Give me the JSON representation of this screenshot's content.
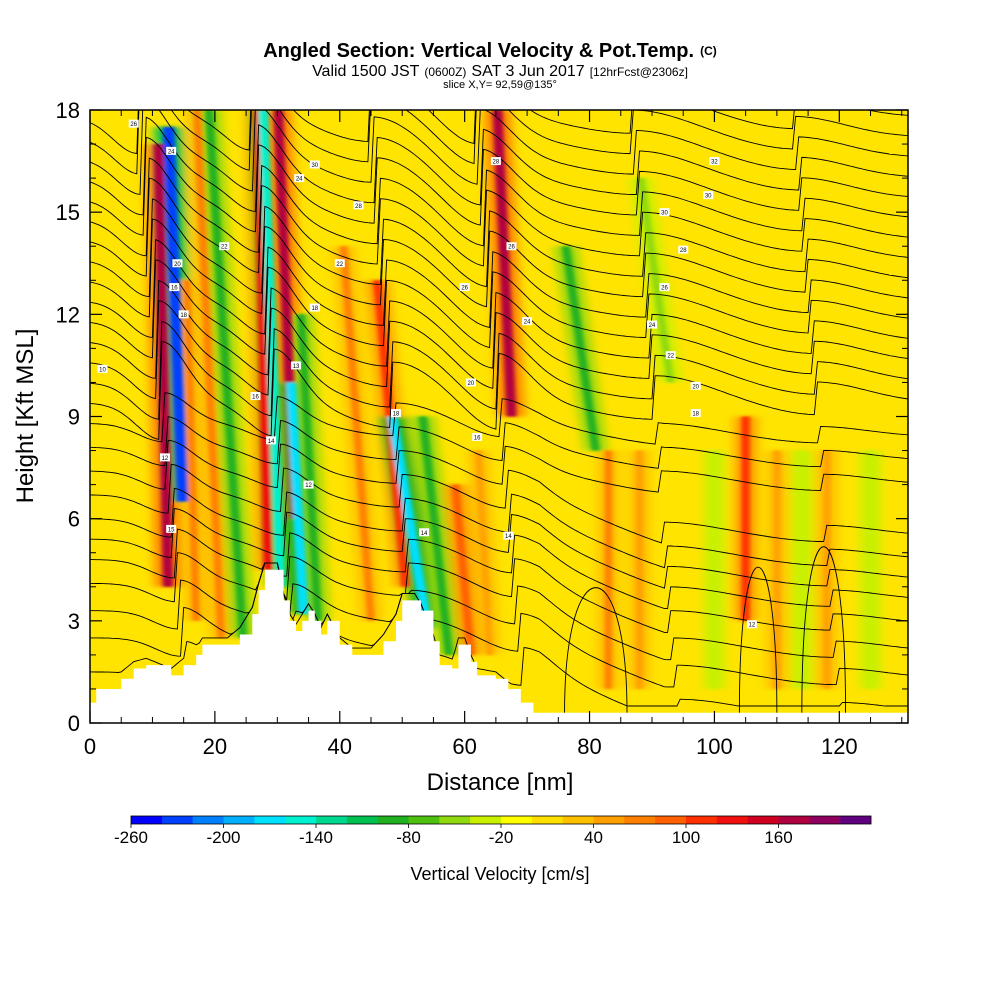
{
  "chart_data": {
    "type": "heatmap",
    "title": "Angled Section: Vertical Velocity & Pot.Temp.",
    "title_mark": "(C)",
    "subtitle": {
      "part1": "Valid 1500 JST",
      "part2": "(0600Z)",
      "part3": "SAT 3 Jun 2017",
      "part4": "[12hrFcst@2306z]"
    },
    "slice_label": "slice X,Y= 92,59@135°",
    "xlabel": "Distance [nm]",
    "ylabel": "Height [Kft MSL]",
    "xlim": [
      0,
      131
    ],
    "ylim": [
      0,
      18
    ],
    "x_ticks": [
      "0",
      "20",
      "40",
      "60",
      "80",
      "100",
      "120"
    ],
    "y_ticks": [
      "0",
      "3",
      "6",
      "9",
      "12",
      "15",
      "18"
    ],
    "colorbar": {
      "label": "Vertical Velocity [cm/s]",
      "tick_labels": [
        "-260",
        "-200",
        "-140",
        "-80",
        "-20",
        "40",
        "100",
        "160"
      ],
      "colors": [
        "#0000ff",
        "#0040ff",
        "#0080ff",
        "#00b0ff",
        "#00e0ff",
        "#00f0d0",
        "#00d890",
        "#00c050",
        "#20b020",
        "#50c010",
        "#90d810",
        "#c8f000",
        "#ffff00",
        "#ffe000",
        "#ffc000",
        "#ffa000",
        "#ff8000",
        "#ff6000",
        "#ff3000",
        "#f01010",
        "#d00020",
        "#b00040",
        "#900060",
        "#600080"
      ]
    },
    "background_color": "#ffe400",
    "vertical_velocity_features": [
      {
        "x": 12.5,
        "z_bottom": 4.0,
        "z_top": 17.0,
        "tilt_nm_per_kft": -0.12,
        "value": 170
      },
      {
        "x": 14.8,
        "z_bottom": 6.5,
        "z_top": 17.5,
        "tilt_nm_per_kft": -0.2,
        "value": -230
      },
      {
        "x": 17.0,
        "z_bottom": 3.0,
        "z_top": 13.0,
        "tilt_nm_per_kft": -0.15,
        "value": 60
      },
      {
        "x": 21.0,
        "z_bottom": 2.5,
        "z_top": 18.0,
        "tilt_nm_per_kft": -0.25,
        "value": 70
      },
      {
        "x": 24.5,
        "z_bottom": 2.5,
        "z_top": 18.0,
        "tilt_nm_per_kft": -0.35,
        "value": -100
      },
      {
        "x": 28.5,
        "z_bottom": 4.5,
        "z_top": 18.0,
        "tilt_nm_per_kft": -0.12,
        "value": 120
      },
      {
        "x": 30.5,
        "z_bottom": 4.0,
        "z_top": 18.0,
        "tilt_nm_per_kft": -0.2,
        "value": -160
      },
      {
        "x": 32.8,
        "z_bottom": 6.0,
        "z_top": 18.0,
        "tilt_nm_per_kft": -0.22,
        "value": 160
      },
      {
        "x": 34.2,
        "z_bottom": 3.2,
        "z_top": 10.0,
        "tilt_nm_per_kft": -0.3,
        "value": -170
      },
      {
        "x": 36.5,
        "z_bottom": 3.0,
        "z_top": 12.0,
        "tilt_nm_per_kft": -0.3,
        "value": -90
      },
      {
        "x": 45.0,
        "z_bottom": 3.0,
        "z_top": 14.0,
        "tilt_nm_per_kft": -0.4,
        "value": 70
      },
      {
        "x": 50.5,
        "z_bottom": 4.0,
        "z_top": 13.0,
        "tilt_nm_per_kft": -0.5,
        "value": 100
      },
      {
        "x": 54.0,
        "z_bottom": 2.8,
        "z_top": 9.0,
        "tilt_nm_per_kft": -0.9,
        "value": -170
      },
      {
        "x": 57.5,
        "z_bottom": 2.0,
        "z_top": 9.0,
        "tilt_nm_per_kft": -0.6,
        "value": -100
      },
      {
        "x": 61.0,
        "z_bottom": 2.0,
        "z_top": 7.0,
        "tilt_nm_per_kft": -0.5,
        "value": 90
      },
      {
        "x": 67.5,
        "z_bottom": 9.0,
        "z_top": 18.0,
        "tilt_nm_per_kft": -0.25,
        "value": 170
      },
      {
        "x": 64.0,
        "z_bottom": 2.0,
        "z_top": 8.0,
        "tilt_nm_per_kft": -0.3,
        "value": 40
      },
      {
        "x": 81.0,
        "z_bottom": 8.0,
        "z_top": 14.0,
        "tilt_nm_per_kft": -0.8,
        "value": -90
      },
      {
        "x": 83.0,
        "z_bottom": 1.0,
        "z_top": 8.0,
        "tilt_nm_per_kft": 0.0,
        "value": 60
      },
      {
        "x": 88.0,
        "z_bottom": 1.0,
        "z_top": 8.0,
        "tilt_nm_per_kft": 0.0,
        "value": 40
      },
      {
        "x": 93.0,
        "z_bottom": 10.0,
        "z_top": 16.0,
        "tilt_nm_per_kft": -0.8,
        "value": -60
      },
      {
        "x": 100.0,
        "z_bottom": 1.0,
        "z_top": 8.0,
        "tilt_nm_per_kft": 0.0,
        "value": -30
      },
      {
        "x": 105.0,
        "z_bottom": 3.0,
        "z_top": 9.0,
        "tilt_nm_per_kft": 0.0,
        "value": 100
      },
      {
        "x": 110.0,
        "z_bottom": 1.0,
        "z_top": 8.0,
        "tilt_nm_per_kft": 0.0,
        "value": 40
      },
      {
        "x": 114.0,
        "z_bottom": 1.0,
        "z_top": 8.0,
        "tilt_nm_per_kft": 0.0,
        "value": -30
      },
      {
        "x": 118.0,
        "z_bottom": 1.0,
        "z_top": 8.0,
        "tilt_nm_per_kft": 0.0,
        "value": 50
      },
      {
        "x": 125.0,
        "z_bottom": 1.0,
        "z_top": 8.0,
        "tilt_nm_per_kft": 0.0,
        "value": -30
      }
    ],
    "terrain_profile": [
      {
        "x": 0,
        "z": 0.6
      },
      {
        "x": 1,
        "z": 1.0
      },
      {
        "x": 5,
        "z": 1.3
      },
      {
        "x": 7,
        "z": 1.6
      },
      {
        "x": 9,
        "z": 1.7
      },
      {
        "x": 13,
        "z": 1.4
      },
      {
        "x": 15,
        "z": 1.7
      },
      {
        "x": 17,
        "z": 2.0
      },
      {
        "x": 18,
        "z": 2.3
      },
      {
        "x": 22,
        "z": 2.3
      },
      {
        "x": 24,
        "z": 2.6
      },
      {
        "x": 26,
        "z": 3.2
      },
      {
        "x": 27,
        "z": 3.9
      },
      {
        "x": 28,
        "z": 4.5
      },
      {
        "x": 30,
        "z": 4.5
      },
      {
        "x": 31,
        "z": 3.6
      },
      {
        "x": 32,
        "z": 3.0
      },
      {
        "x": 33,
        "z": 2.7
      },
      {
        "x": 34,
        "z": 3.0
      },
      {
        "x": 35,
        "z": 3.3
      },
      {
        "x": 36,
        "z": 3.0
      },
      {
        "x": 37,
        "z": 2.6
      },
      {
        "x": 38,
        "z": 3.0
      },
      {
        "x": 40,
        "z": 2.3
      },
      {
        "x": 42,
        "z": 2.0
      },
      {
        "x": 45,
        "z": 2.0
      },
      {
        "x": 47,
        "z": 2.4
      },
      {
        "x": 49,
        "z": 3.0
      },
      {
        "x": 50,
        "z": 3.6
      },
      {
        "x": 52,
        "z": 3.6
      },
      {
        "x": 53,
        "z": 3.3
      },
      {
        "x": 55,
        "z": 2.4
      },
      {
        "x": 56,
        "z": 1.7
      },
      {
        "x": 58,
        "z": 1.6
      },
      {
        "x": 59,
        "z": 2.3
      },
      {
        "x": 60,
        "z": 2.3
      },
      {
        "x": 61,
        "z": 1.8
      },
      {
        "x": 62,
        "z": 1.4
      },
      {
        "x": 65,
        "z": 1.3
      },
      {
        "x": 67,
        "z": 1.0
      },
      {
        "x": 69,
        "z": 0.6
      },
      {
        "x": 71,
        "z": 0.3
      },
      {
        "x": 131,
        "z": 0.3
      }
    ],
    "isentrope_heights_kft": [
      1.5,
      2.5,
      3.3,
      4.1,
      4.8,
      5.4,
      6.0,
      6.7,
      7.4,
      8.1,
      8.8,
      9.4,
      10.0,
      10.6,
      11.2,
      11.8,
      12.4,
      13.0,
      13.6,
      14.2,
      14.8,
      15.4,
      16.0,
      16.6,
      17.2,
      17.8
    ],
    "contour_labels": [
      {
        "text": "26",
        "x": 7.0,
        "z": 17.6
      },
      {
        "text": "24",
        "x": 13.0,
        "z": 16.8
      },
      {
        "text": "20",
        "x": 14.0,
        "z": 13.5
      },
      {
        "text": "16",
        "x": 13.5,
        "z": 12.8
      },
      {
        "text": "10",
        "x": 2.0,
        "z": 10.4
      },
      {
        "text": "12",
        "x": 12.0,
        "z": 7.8
      },
      {
        "text": "15",
        "x": 13.0,
        "z": 5.7
      },
      {
        "text": "18",
        "x": 15.0,
        "z": 12.0
      },
      {
        "text": "22",
        "x": 21.5,
        "z": 14.0
      },
      {
        "text": "30",
        "x": 36.0,
        "z": 16.4
      },
      {
        "text": "24",
        "x": 33.5,
        "z": 16.0
      },
      {
        "text": "22",
        "x": 40.0,
        "z": 13.5
      },
      {
        "text": "18",
        "x": 36.0,
        "z": 12.2
      },
      {
        "text": "13",
        "x": 33.0,
        "z": 10.5
      },
      {
        "text": "16",
        "x": 26.5,
        "z": 9.6
      },
      {
        "text": "14",
        "x": 29.0,
        "z": 8.3
      },
      {
        "text": "12",
        "x": 35.0,
        "z": 7.0
      },
      {
        "text": "28",
        "x": 43.0,
        "z": 15.2
      },
      {
        "text": "26",
        "x": 60.0,
        "z": 12.8
      },
      {
        "text": "20",
        "x": 61.0,
        "z": 10.0
      },
      {
        "text": "18",
        "x": 49.0,
        "z": 9.1
      },
      {
        "text": "16",
        "x": 62.0,
        "z": 8.4
      },
      {
        "text": "14",
        "x": 53.5,
        "z": 5.6
      },
      {
        "text": "14",
        "x": 67.0,
        "z": 5.5
      },
      {
        "text": "28",
        "x": 65.0,
        "z": 16.5
      },
      {
        "text": "26",
        "x": 67.5,
        "z": 14.0
      },
      {
        "text": "24",
        "x": 70.0,
        "z": 11.8
      },
      {
        "text": "32",
        "x": 100.0,
        "z": 16.5
      },
      {
        "text": "30",
        "x": 99.0,
        "z": 15.5
      },
      {
        "text": "30",
        "x": 92.0,
        "z": 15.0
      },
      {
        "text": "28",
        "x": 95.0,
        "z": 13.9
      },
      {
        "text": "26",
        "x": 92.0,
        "z": 12.8
      },
      {
        "text": "24",
        "x": 90.0,
        "z": 11.7
      },
      {
        "text": "22",
        "x": 93.0,
        "z": 10.8
      },
      {
        "text": "20",
        "x": 97.0,
        "z": 9.9
      },
      {
        "text": "18",
        "x": 97.0,
        "z": 9.1
      },
      {
        "text": "12",
        "x": 106.0,
        "z": 2.9
      }
    ]
  }
}
